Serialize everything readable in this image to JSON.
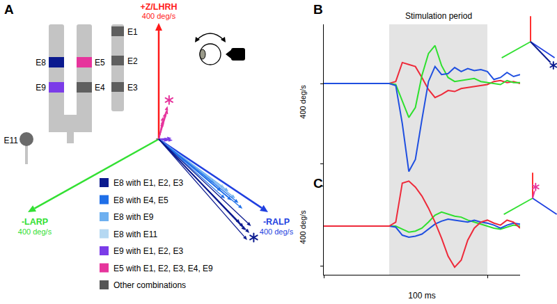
{
  "panel_A": {
    "label": "A",
    "axes": [
      {
        "label": "+Z/LHRH",
        "length": 400,
        "length_label": "400 deg/s",
        "color": "#ff1a1a"
      },
      {
        "label": "-LARP",
        "length": 400,
        "length_label": "400 deg/s",
        "color": "#33e033"
      },
      {
        "label": "-RALP",
        "length": 400,
        "length_label": "400 deg/s",
        "color": "#1f3fe0"
      }
    ],
    "electrodes": [
      {
        "label": "E1",
        "color": "#5f5f5f"
      },
      {
        "label": "E2",
        "color": "#5f5f5f"
      },
      {
        "label": "E3",
        "color": "#5f5f5f"
      },
      {
        "label": "E4",
        "color": "#5f5f5f"
      },
      {
        "label": "E5",
        "color": "#e6349c"
      },
      {
        "label": "E8",
        "color": "#0b1a8f"
      },
      {
        "label": "E9",
        "color": "#7b3ce8"
      },
      {
        "label": "E11",
        "color": "#6a6a6a"
      }
    ],
    "groups": [
      {
        "name": "E8 with E1, E2, E3",
        "color": "#0b1a8f",
        "vectors": [
          [
            0,
            104,
            448
          ],
          {
            "values": [
              0,
              83,
              431
            ],
            "marker": "asterisk"
          },
          [
            8,
            84,
            411
          ],
          [
            5,
            78,
            391
          ],
          [
            0,
            63,
            413
          ],
          [
            10,
            90,
            425
          ]
        ]
      },
      {
        "name": "E8 with E4, E5",
        "color": "#1f6fe8",
        "vectors": [
          [
            0,
            34,
            347
          ],
          [
            5,
            35,
            308
          ],
          [
            0,
            26,
            260
          ],
          [
            8,
            32,
            330
          ],
          [
            3,
            40,
            290
          ]
        ]
      },
      {
        "name": "E8 with E9",
        "color": "#6eb0f0",
        "vectors": [
          [
            0,
            14,
            272
          ],
          [
            5,
            20,
            228
          ],
          [
            0,
            20,
            304
          ]
        ]
      },
      {
        "name": "E8 with E11",
        "color": "#b5d8f2",
        "vectors": [
          [
            0,
            12,
            255
          ],
          [
            4,
            17,
            212
          ]
        ]
      },
      {
        "name": "E9 with E1, E2, E3",
        "color": "#7b3ce8",
        "vectors": [
          [
            0,
            -20,
            27
          ],
          [
            5,
            -12,
            22
          ],
          [
            -3,
            -14,
            18
          ],
          [
            8,
            -18,
            25
          ]
        ]
      },
      {
        "name": "E5 with E1, E2, E3, E4, E9",
        "color": "#e6349c",
        "vectors": [
          {
            "values": [
              120,
              -10,
              20
            ],
            "marker": "asterisk"
          },
          [
            95,
            -8,
            15
          ],
          [
            80,
            -5,
            10
          ],
          [
            105,
            -12,
            18
          ],
          [
            60,
            -6,
            8
          ],
          [
            70,
            -4,
            12
          ]
        ]
      },
      {
        "name": "Other combinations",
        "color": "#555555",
        "vectors": [
          [
            5,
            3,
            8
          ],
          [
            3,
            -4,
            5
          ],
          [
            2,
            6,
            -4
          ],
          [
            -4,
            0,
            6
          ]
        ]
      }
    ]
  },
  "chart_data": {
    "type": "line",
    "x": [
      0,
      4,
      8,
      12,
      16,
      20,
      24,
      28,
      32,
      36,
      40,
      44,
      48,
      52,
      56,
      60,
      64,
      68,
      72,
      76,
      80,
      84,
      88,
      92,
      96,
      100,
      104,
      108,
      112,
      116,
      120
    ],
    "xlim": [
      0,
      120
    ],
    "xticks": [
      0,
      100
    ],
    "x_label": "100 ms",
    "tick_labels": false,
    "panels": [
      {
        "label": "B",
        "stimulation_period": {
          "label": "Stimulation period",
          "start": 40,
          "end": 100
        },
        "ylim": [
          -480,
          296
        ],
        "yticks": [
          -400,
          0
        ],
        "y_label": "400 deg/s",
        "series": [
          {
            "color": "#ee2a3a",
            "values": [
              0,
              0,
              0,
              0,
              0,
              0,
              0,
              0,
              0,
              0,
              0,
              10,
              105,
              95,
              85,
              30,
              -30,
              -70,
              -55,
              -35,
              -40,
              -25,
              -20,
              -15,
              -10,
              -5,
              10,
              15,
              5,
              10,
              0
            ]
          },
          {
            "color": "#2ee02e",
            "values": [
              0,
              0,
              0,
              0,
              0,
              0,
              0,
              0,
              0,
              0,
              0,
              -5,
              -90,
              -170,
              -120,
              40,
              150,
              190,
              90,
              30,
              10,
              15,
              20,
              25,
              10,
              5,
              0,
              -5,
              15,
              5,
              5
            ]
          },
          {
            "color": "#1f4fe0",
            "values": [
              0,
              0,
              0,
              0,
              0,
              0,
              0,
              0,
              0,
              0,
              0,
              -10,
              -200,
              -440,
              -380,
              -180,
              10,
              85,
              45,
              50,
              80,
              60,
              75,
              65,
              70,
              60,
              20,
              30,
              55,
              35,
              45
            ]
          }
        ],
        "inset_vector": {
          "values": [
            0,
            83,
            431
          ],
          "color": "#0b1a8f",
          "marker": "asterisk"
        }
      },
      {
        "label": "C",
        "stimulation_period": {
          "start": 40,
          "end": 100
        },
        "ylim": [
          -243,
          233
        ],
        "yticks": [
          -200,
          200
        ],
        "y_label": "400 deg/s",
        "series": [
          {
            "color": "#2ee02e",
            "values": [
              0,
              0,
              0,
              0,
              0,
              0,
              0,
              0,
              0,
              0,
              0,
              0,
              -15,
              -30,
              -25,
              -10,
              20,
              55,
              70,
              60,
              50,
              45,
              30,
              20,
              10,
              0,
              -10,
              -15,
              -5,
              5,
              0
            ]
          },
          {
            "color": "#1f4fe0",
            "values": [
              0,
              0,
              0,
              0,
              0,
              0,
              0,
              0,
              0,
              0,
              0,
              -5,
              -45,
              -55,
              -50,
              -40,
              -15,
              10,
              25,
              35,
              30,
              25,
              20,
              30,
              20,
              15,
              5,
              -10,
              5,
              15,
              10
            ]
          },
          {
            "color": "#ee2a3a",
            "values": [
              0,
              0,
              0,
              0,
              0,
              0,
              0,
              0,
              0,
              0,
              0,
              20,
              215,
              225,
              195,
              150,
              90,
              20,
              -60,
              -150,
              -205,
              -170,
              -70,
              -10,
              20,
              30,
              15,
              5,
              30,
              20,
              -10
            ]
          }
        ],
        "inset_vector": {
          "values": [
            120,
            -10,
            20
          ],
          "color": "#e6349c",
          "marker": "asterisk"
        }
      }
    ]
  }
}
